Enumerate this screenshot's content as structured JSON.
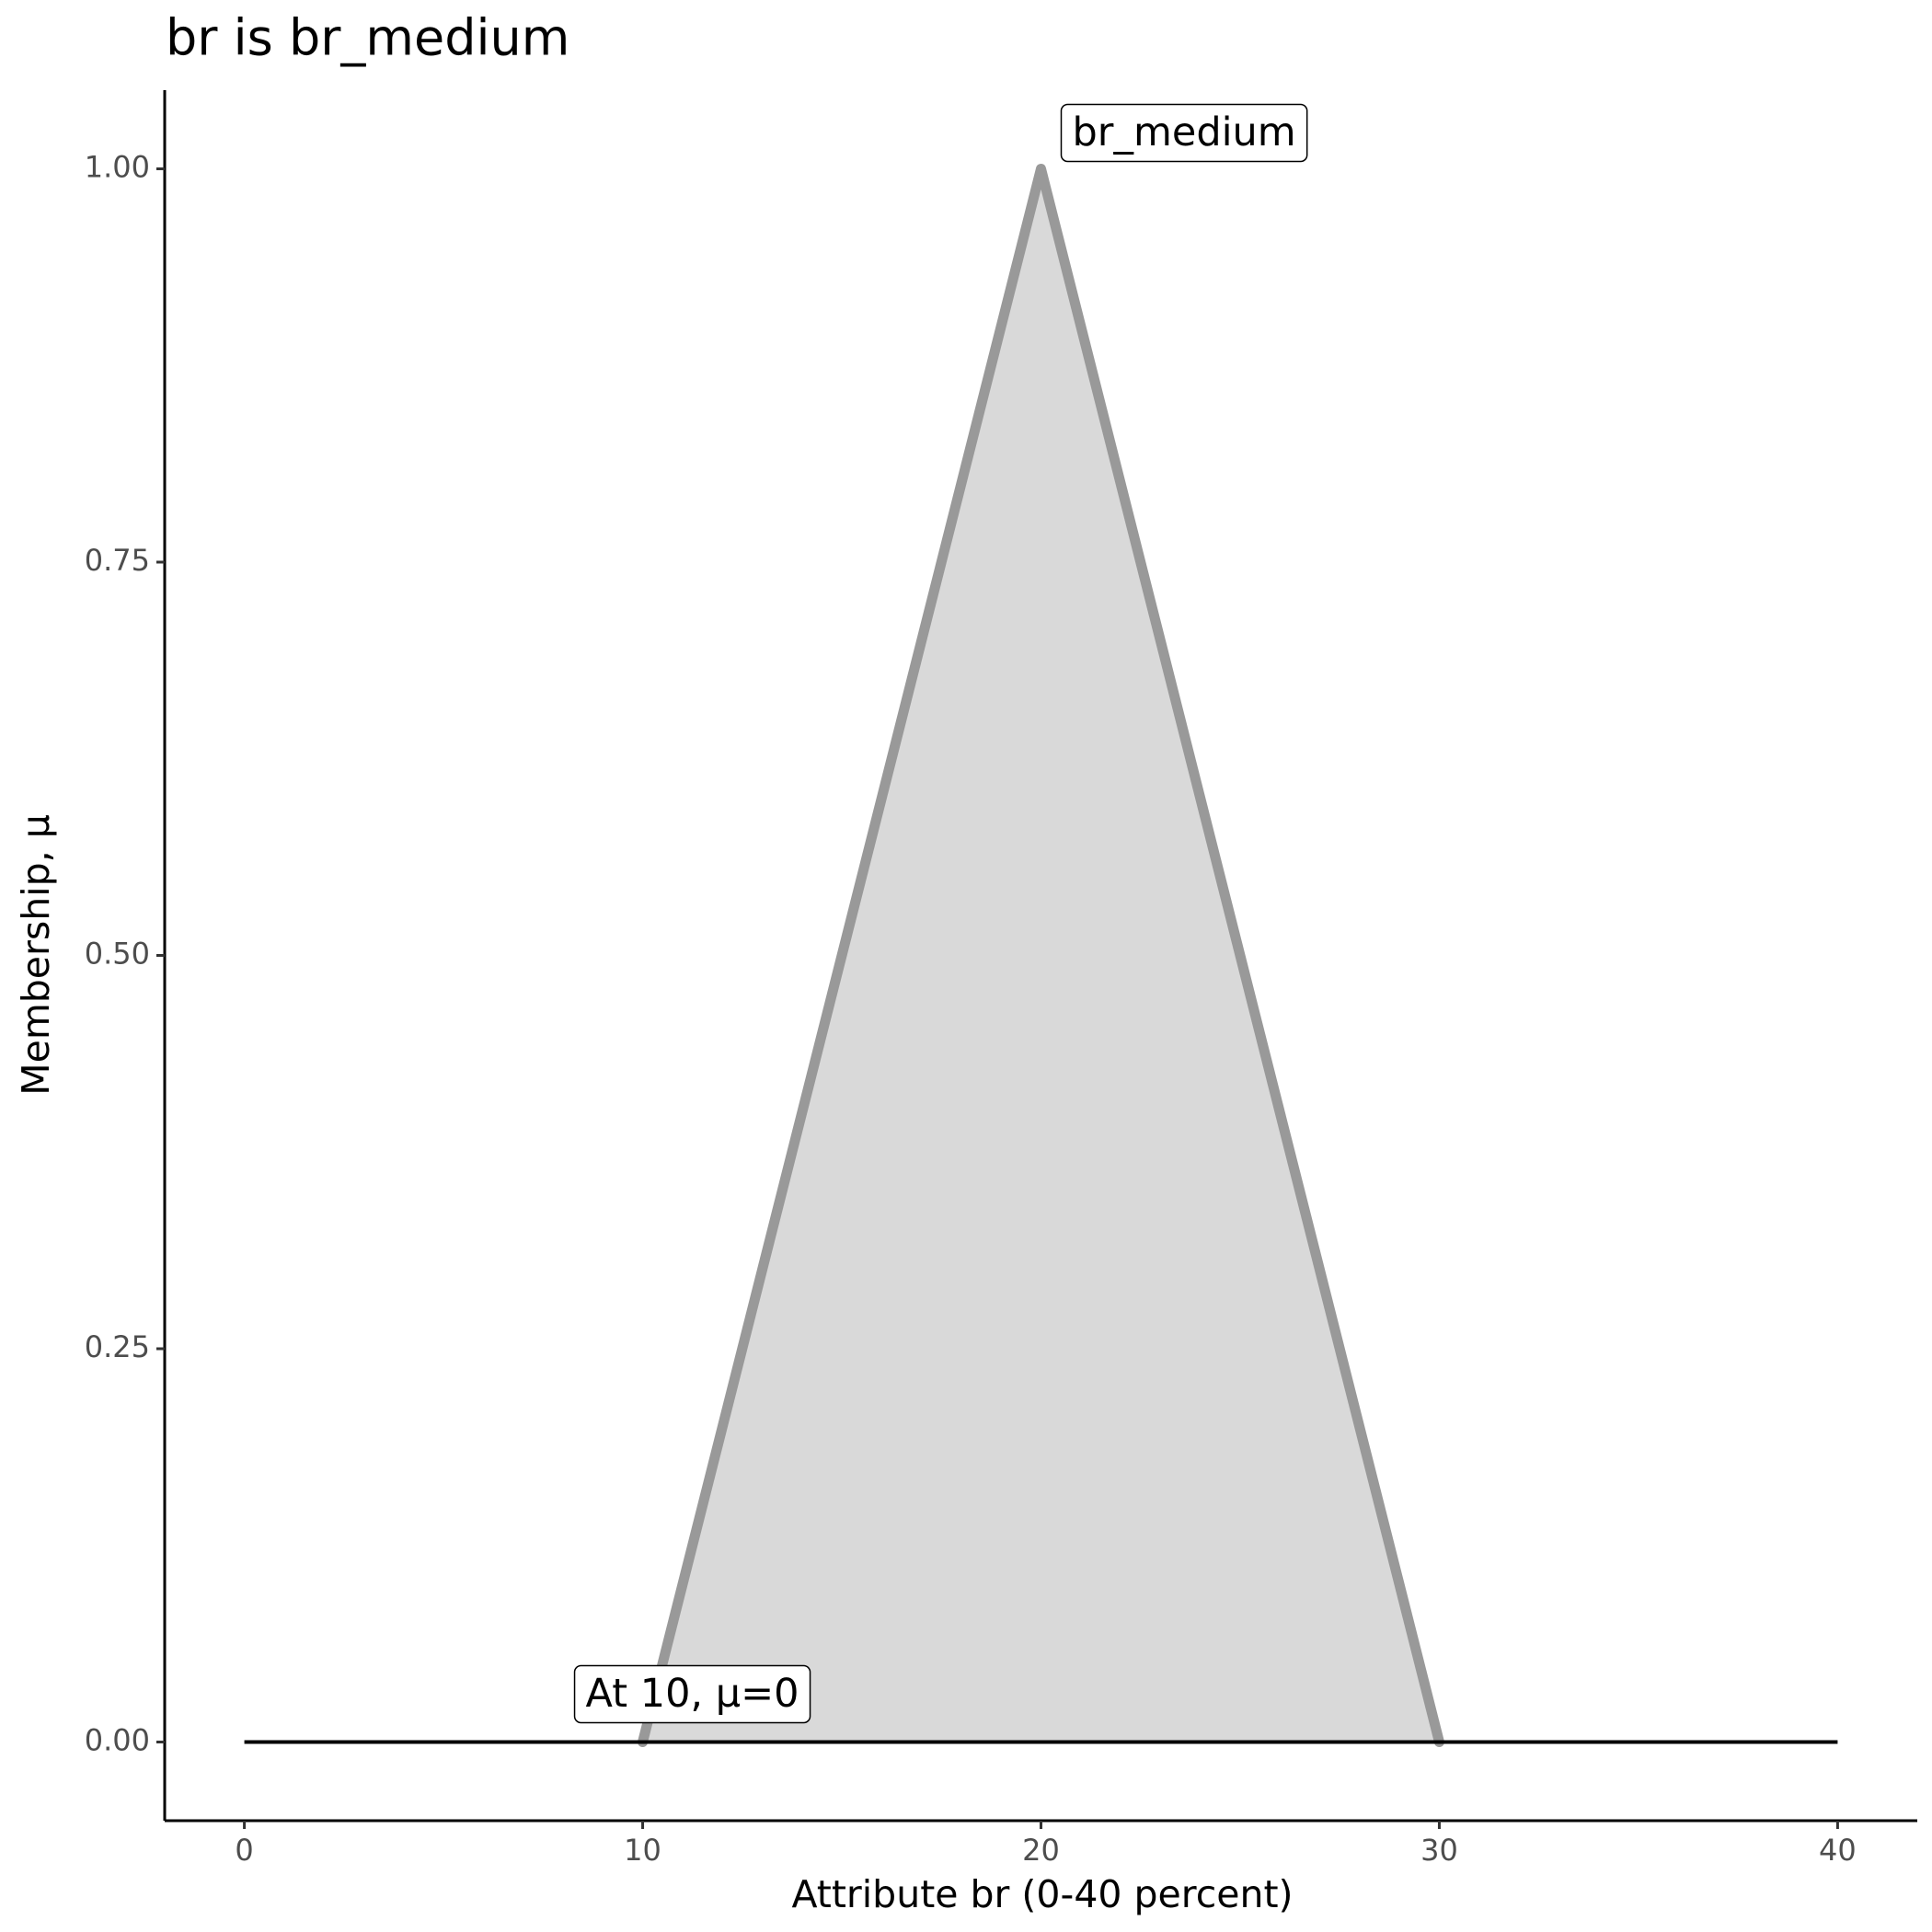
{
  "chart_data": {
    "type": "area",
    "title": "br is br_medium",
    "x_label": "Attribute br (0-40 percent)",
    "y_label": "Membership, μ",
    "x": [
      10,
      20,
      30
    ],
    "values": [
      0,
      1,
      0
    ],
    "color": "#999999",
    "fill": "#d9d9d9",
    "reference_line": {
      "x": [
        0,
        40
      ],
      "values": [
        0,
        0
      ],
      "color": "#000000"
    },
    "annotations": [
      {
        "text": "br_medium",
        "x": 20,
        "y": 1
      },
      {
        "text": "At 10, μ=0",
        "x": 10,
        "y": 0
      }
    ],
    "xlim": [
      -2,
      42
    ],
    "xticks": [
      0,
      10,
      20,
      30,
      40
    ],
    "ylim": [
      -0.05,
      1.05
    ],
    "yticks": [
      {
        "value": 0,
        "label": "0.00"
      },
      {
        "value": 0.25,
        "label": "0.25"
      },
      {
        "value": 0.5,
        "label": "0.50"
      },
      {
        "value": 0.75,
        "label": "0.75"
      },
      {
        "value": 1,
        "label": "1.00"
      }
    ],
    "grid": false
  }
}
